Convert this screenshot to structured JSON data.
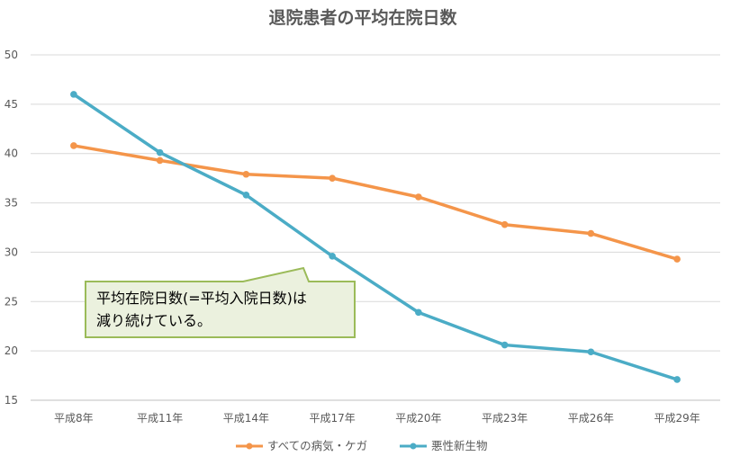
{
  "chart_data": {
    "type": "line",
    "title": "退院患者の平均在院日数",
    "xlabel": "",
    "ylabel": "",
    "categories": [
      "平成8年",
      "平成11年",
      "平成14年",
      "平成17年",
      "平成20年",
      "平成23年",
      "平成26年",
      "平成29年"
    ],
    "y_ticks": [
      "15",
      "20",
      "25",
      "30",
      "35",
      "40",
      "45",
      "50"
    ],
    "ylim": [
      15,
      50
    ],
    "grid": true,
    "legend_position": "bottom",
    "series": [
      {
        "name": "すべての病気・ケガ",
        "color": "#F4954A",
        "values": [
          40.8,
          39.3,
          37.9,
          37.5,
          35.6,
          32.8,
          31.9,
          29.3
        ]
      },
      {
        "name": "悪性新生物",
        "color": "#4BACC6",
        "values": [
          46.0,
          40.1,
          35.8,
          29.6,
          23.9,
          20.6,
          19.9,
          17.1
        ]
      }
    ],
    "annotation": {
      "lines": [
        "平均在院日数(=平均入院日数)は",
        "減り続けている。"
      ],
      "fill": "#EBF1DE",
      "border": "#9BBB59"
    }
  }
}
